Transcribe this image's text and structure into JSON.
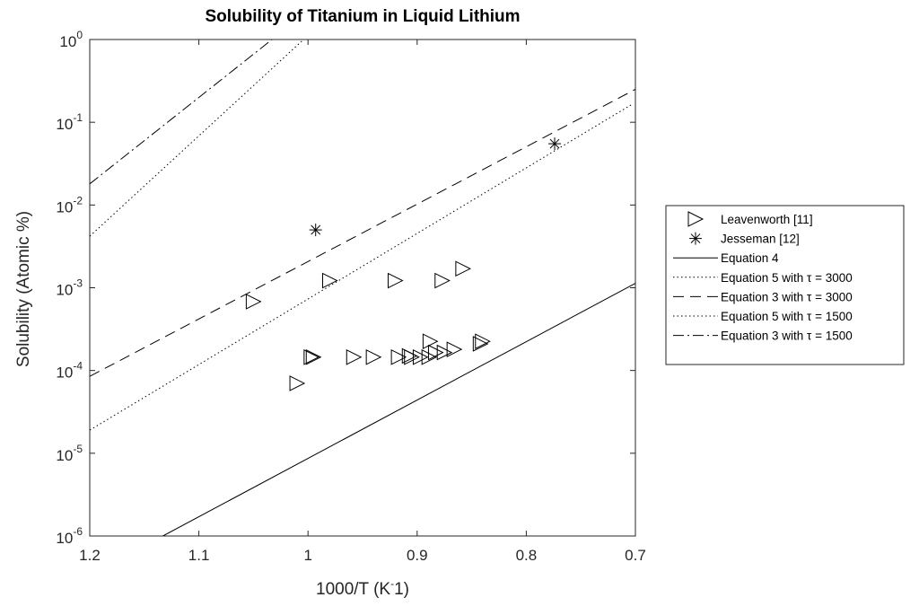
{
  "chart_data": {
    "type": "scatter",
    "title": "Solubility of Titanium in Liquid Lithium",
    "xlabel_main": "1000/T (K",
    "xlabel_sup": "-",
    "xlabel_end": "1)",
    "ylabel": "Solubility (Atomic %)",
    "x_reversed": true,
    "y_scale": "log",
    "xlim": [
      0.7,
      1.2
    ],
    "ylim": [
      1e-06,
      1
    ],
    "x_ticks": [
      {
        "value": 1.2,
        "label": "1.2"
      },
      {
        "value": 1.1,
        "label": "1.1"
      },
      {
        "value": 1.0,
        "label": "1"
      },
      {
        "value": 0.9,
        "label": "0.9"
      },
      {
        "value": 0.8,
        "label": "0.8"
      },
      {
        "value": 0.7,
        "label": "0.7"
      }
    ],
    "y_ticks": [
      {
        "exp": 0,
        "base": "10",
        "power": "0"
      },
      {
        "exp": -1,
        "base": "10",
        "power": "-1"
      },
      {
        "exp": -2,
        "base": "10",
        "power": "-2"
      },
      {
        "exp": -3,
        "base": "10",
        "power": "-3"
      },
      {
        "exp": -4,
        "base": "10",
        "power": "-4"
      },
      {
        "exp": -5,
        "base": "10",
        "power": "-5"
      },
      {
        "exp": -6,
        "base": "10",
        "power": "-6"
      }
    ],
    "legend_position": "outside-right",
    "series": [
      {
        "name": "Leavenworth [11]",
        "kind": "marker",
        "marker": "triangle-right",
        "points": [
          {
            "x": 1.05,
            "y": 0.00068
          },
          {
            "x": 1.01,
            "y": 7e-05
          },
          {
            "x": 0.997,
            "y": 0.000145
          },
          {
            "x": 0.995,
            "y": 0.000145
          },
          {
            "x": 0.98,
            "y": 0.00122
          },
          {
            "x": 0.958,
            "y": 0.000145
          },
          {
            "x": 0.94,
            "y": 0.000145
          },
          {
            "x": 0.92,
            "y": 0.00122
          },
          {
            "x": 0.917,
            "y": 0.000145
          },
          {
            "x": 0.907,
            "y": 0.00015
          },
          {
            "x": 0.905,
            "y": 0.000145
          },
          {
            "x": 0.897,
            "y": 0.000145
          },
          {
            "x": 0.889,
            "y": 0.000145
          },
          {
            "x": 0.888,
            "y": 0.000225
          },
          {
            "x": 0.883,
            "y": 0.000165
          },
          {
            "x": 0.877,
            "y": 0.00122
          },
          {
            "x": 0.875,
            "y": 0.000165
          },
          {
            "x": 0.866,
            "y": 0.00018
          },
          {
            "x": 0.858,
            "y": 0.0017
          },
          {
            "x": 0.842,
            "y": 0.00021
          },
          {
            "x": 0.84,
            "y": 0.000225
          }
        ]
      },
      {
        "name": "Jesseman [12]",
        "kind": "marker",
        "marker": "asterisk",
        "points": [
          {
            "x": 0.993,
            "y": 0.005
          },
          {
            "x": 0.774,
            "y": 0.055
          }
        ]
      },
      {
        "name": "Equation 4",
        "kind": "line",
        "dash": "solid",
        "points": [
          {
            "x": 1.133,
            "y": 1e-06
          },
          {
            "x": 0.7,
            "y": 0.00113
          }
        ]
      },
      {
        "name": "Equation 5 with τ = 3000",
        "kind": "line",
        "dash": "dotted",
        "points": [
          {
            "x": 1.2,
            "y": 0.0042
          },
          {
            "x": 1.004,
            "y": 1.0
          }
        ]
      },
      {
        "name": "Equation 3 with τ = 3000",
        "kind": "line",
        "dash": "dashed",
        "points": [
          {
            "x": 1.2,
            "y": 8.5e-05
          },
          {
            "x": 0.7,
            "y": 0.25
          }
        ]
      },
      {
        "name": "Equation 5 with τ = 1500",
        "kind": "line",
        "dash": "dotted",
        "points": [
          {
            "x": 1.2,
            "y": 1.9e-05
          },
          {
            "x": 0.703,
            "y": 0.165
          }
        ]
      },
      {
        "name": "Equation 3 with τ = 1500",
        "kind": "line",
        "dash": "dashdot",
        "points": [
          {
            "x": 1.2,
            "y": 0.018
          },
          {
            "x": 1.033,
            "y": 1.0
          }
        ]
      }
    ]
  }
}
